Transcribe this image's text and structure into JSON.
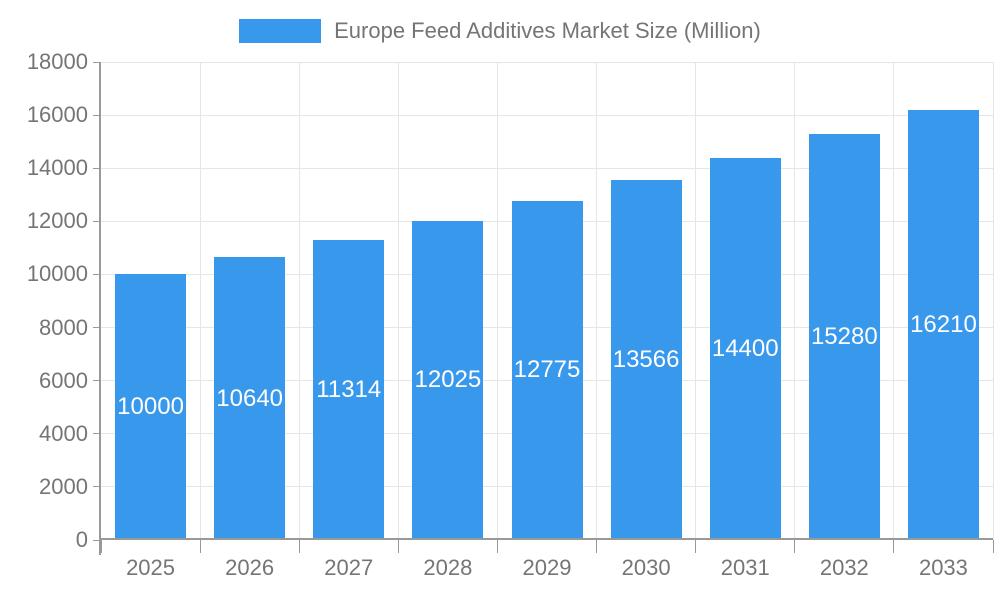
{
  "chart_data": {
    "type": "bar",
    "title": "Europe Feed Additives Market Size (Million)",
    "categories": [
      "2025",
      "2026",
      "2027",
      "2028",
      "2029",
      "2030",
      "2031",
      "2032",
      "2033"
    ],
    "series": [
      {
        "name": "Europe Feed Additives Market Size (Million)",
        "values": [
          10000,
          10640,
          11314,
          12025,
          12775,
          13566,
          14400,
          15280,
          16210
        ]
      }
    ],
    "xlabel": "",
    "ylabel": "",
    "ylim": [
      0,
      18000
    ],
    "ytick_interval": 2000,
    "ytick_labels": [
      "0",
      "2000",
      "4000",
      "6000",
      "8000",
      "10000",
      "12000",
      "14000",
      "16000",
      "18000"
    ],
    "grid": true,
    "legend_position": "top",
    "bar_label_position": "inside-center",
    "colors": {
      "bar": "#3898EC",
      "bar_label": "#FFFFFF",
      "axis_text": "#757575",
      "legend_text": "#757575",
      "axis_line": "#999999",
      "grid": "#E6E6E6"
    }
  }
}
